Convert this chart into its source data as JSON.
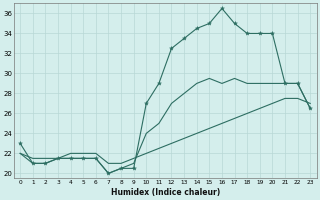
{
  "xlabel": "Humidex (Indice chaleur)",
  "xlim": [
    -0.5,
    23.5
  ],
  "ylim": [
    19.5,
    37
  ],
  "yticks": [
    20,
    22,
    24,
    26,
    28,
    30,
    32,
    34,
    36
  ],
  "xticks": [
    0,
    1,
    2,
    3,
    4,
    5,
    6,
    7,
    8,
    9,
    10,
    11,
    12,
    13,
    14,
    15,
    16,
    17,
    18,
    19,
    20,
    21,
    22,
    23
  ],
  "xtick_labels": [
    "0",
    "1",
    "2",
    "3",
    "4",
    "5",
    "6",
    "7",
    "8",
    "9",
    "10",
    "11",
    "12",
    "13",
    "14",
    "15",
    "16",
    "17",
    "18",
    "19",
    "20",
    "21",
    "22",
    "23"
  ],
  "bg_color": "#d4eeec",
  "grid_color": "#b8d8d6",
  "line_color": "#2d6e62",
  "x": [
    0,
    1,
    2,
    3,
    4,
    5,
    6,
    7,
    8,
    9,
    10,
    11,
    12,
    13,
    14,
    15,
    16,
    17,
    18,
    19,
    20,
    21,
    22,
    23
  ],
  "y_jagged": [
    23,
    21,
    21,
    21.5,
    21.5,
    21.5,
    21.5,
    20,
    20.5,
    20.5,
    27,
    29,
    32.5,
    33.5,
    34.5,
    35,
    36.5,
    35,
    34,
    34,
    34,
    29,
    29,
    26.5
  ],
  "y_middle": [
    22,
    21,
    21,
    21.5,
    21.5,
    21.5,
    21.5,
    20,
    20.5,
    21,
    24,
    25,
    27,
    28,
    29,
    29.5,
    29,
    29.5,
    29,
    29,
    29,
    29,
    29,
    26.5
  ],
  "y_linear": [
    22,
    21.5,
    21.5,
    21.5,
    22,
    22,
    22,
    21,
    21,
    21.5,
    22,
    22.5,
    23,
    23.5,
    24,
    24.5,
    25,
    25.5,
    26,
    26.5,
    27,
    27.5,
    27.5,
    27
  ]
}
